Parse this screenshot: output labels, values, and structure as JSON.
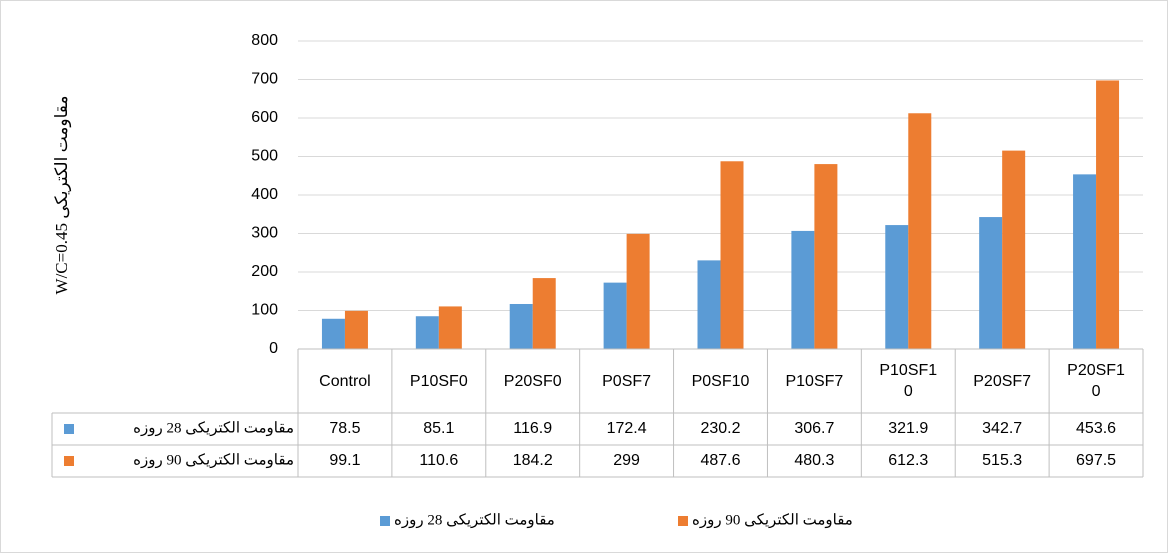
{
  "chart_data": {
    "type": "bar",
    "y_label": "W/C=0.45 مقاومت الکتریکی",
    "categories": [
      "Control",
      "P10SF0",
      "P20SF0",
      "P0SF7",
      "P0SF10",
      "P10SF7",
      "P10SF10",
      "P20SF7",
      "P20SF10"
    ],
    "series": [
      {
        "name": "مقاومت الکتریکی 28 روزه",
        "color": "#5b9bd5",
        "values": [
          78.5,
          85.1,
          116.9,
          172.4,
          230.2,
          306.7,
          321.9,
          342.7,
          453.6
        ]
      },
      {
        "name": "مقاومت الکتریکی 90 روزه",
        "color": "#ed7d31",
        "values": [
          99.1,
          110.6,
          184.2,
          299,
          487.6,
          480.3,
          612.3,
          515.3,
          697.5
        ]
      }
    ],
    "ylim": [
      0,
      800
    ],
    "yticks": [
      0,
      100,
      200,
      300,
      400,
      500,
      600,
      700,
      800
    ],
    "grid": true,
    "data_table": true,
    "legend": "bottom"
  }
}
